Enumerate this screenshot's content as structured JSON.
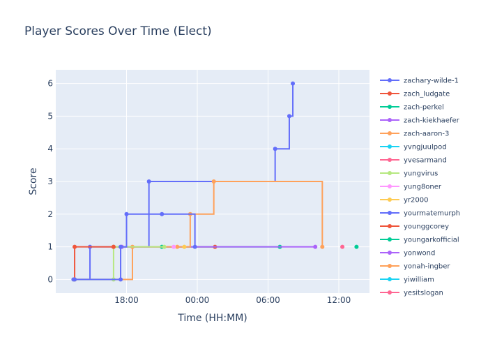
{
  "chart_data": {
    "type": "line",
    "line_shape": "step",
    "title": "Player Scores Over Time (Elect)",
    "xlabel": "Time (HH:MM)",
    "ylabel": "Score",
    "x_ticks": [
      {
        "label": "18:00",
        "h": 18
      },
      {
        "label": "00:00",
        "h": 24
      },
      {
        "label": "06:00",
        "h": 30
      },
      {
        "label": "12:00",
        "h": 36
      }
    ],
    "xlim_hours": [
      12.0,
      38.6
    ],
    "ylim": [
      -0.42,
      6.42
    ],
    "y_ticks": [
      0,
      1,
      2,
      3,
      4,
      5,
      6
    ],
    "grid": true,
    "legend_placement": "right",
    "series": [
      {
        "name": "zachary-wilde-1",
        "color": "#636efa",
        "points": [
          [
            13.5,
            0
          ],
          [
            14.9,
            1
          ],
          [
            19.9,
            3
          ],
          [
            30.6,
            4
          ],
          [
            31.8,
            5
          ],
          [
            32.1,
            6
          ]
        ]
      },
      {
        "name": "zach_ludgate",
        "color": "#ef553b",
        "points": [
          [
            13.6,
            0
          ],
          [
            13.6,
            1
          ],
          [
            16.9,
            1
          ],
          [
            25.5,
            1
          ]
        ]
      },
      {
        "name": "zach-perkel",
        "color": "#00cc96",
        "points": [
          [
            21.0,
            1
          ],
          [
            31.0,
            1
          ]
        ]
      },
      {
        "name": "zach-kiekhaefer",
        "color": "#ab63fa",
        "points": [
          [
            17.6,
            1
          ],
          [
            34.0,
            1
          ]
        ]
      },
      {
        "name": "zach-aaron-3",
        "color": "#ffa15a",
        "points": [
          [
            13.6,
            0
          ],
          [
            18.5,
            1
          ],
          [
            22.3,
            1
          ],
          [
            23.4,
            2
          ],
          [
            25.4,
            3
          ],
          [
            34.6,
            1
          ]
        ]
      },
      {
        "name": "yvngjuulpod",
        "color": "#19d3f3",
        "points": []
      },
      {
        "name": "yvesarmand",
        "color": "#ff6692",
        "points": [
          [
            36.3,
            1
          ]
        ]
      },
      {
        "name": "yungvirus",
        "color": "#b6e880",
        "points": [
          [
            13.6,
            0
          ],
          [
            16.9,
            0
          ],
          [
            16.9,
            1
          ],
          [
            21.2,
            1
          ]
        ]
      },
      {
        "name": "yung8oner",
        "color": "#ff97ff",
        "points": [
          [
            22.0,
            1
          ]
        ]
      },
      {
        "name": "yr2000",
        "color": "#fecb52",
        "points": [
          [
            22.9,
            1
          ]
        ]
      },
      {
        "name": "yourmatemurph",
        "color": "#636efa",
        "points": [
          [
            13.6,
            0
          ],
          [
            17.5,
            0
          ],
          [
            17.5,
            1
          ],
          [
            18.0,
            2
          ],
          [
            21.0,
            2
          ],
          [
            23.8,
            1
          ]
        ]
      },
      {
        "name": "younggcorey",
        "color": "#ef553b",
        "points": [
          [
            16.9,
            1
          ]
        ]
      },
      {
        "name": "youngarkofficial",
        "color": "#00cc96",
        "points": [
          [
            37.5,
            1
          ]
        ]
      },
      {
        "name": "yonwond",
        "color": "#ab63fa",
        "points": []
      },
      {
        "name": "yonah-ingber",
        "color": "#ffa15a",
        "points": []
      },
      {
        "name": "yiwilliam",
        "color": "#19d3f3",
        "points": []
      },
      {
        "name": "yesitslogan",
        "color": "#ff6692",
        "points": []
      }
    ]
  }
}
